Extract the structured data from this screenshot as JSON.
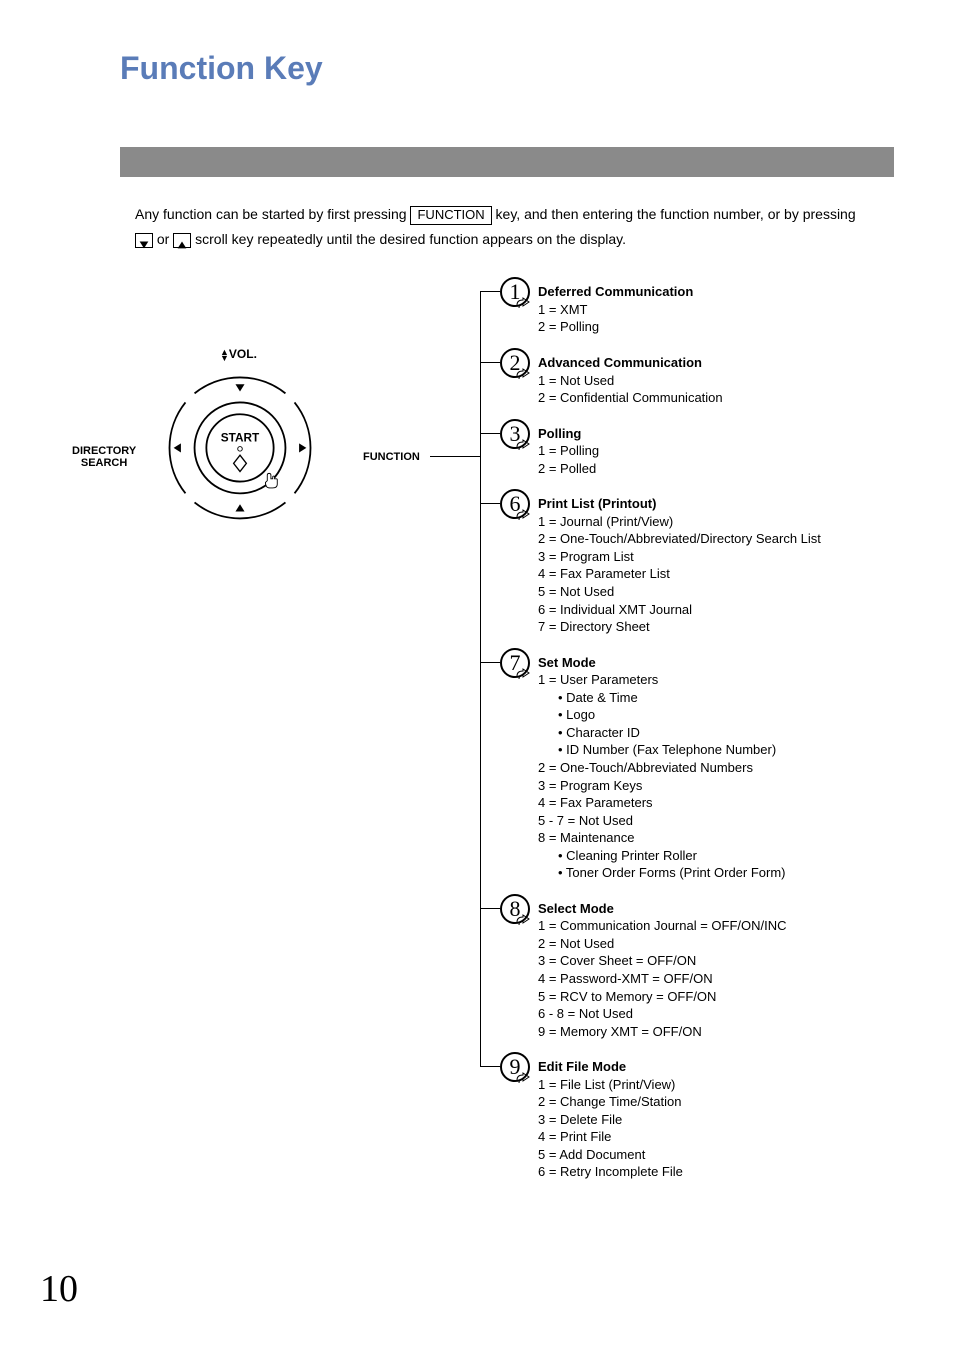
{
  "title": "Function Key",
  "introPre": "Any function can be started by first pressing ",
  "functionKeyLabel": "FUNCTION",
  "introMid": " key, and then entering the function number, or by pressing ",
  "introOr": " or ",
  "introEnd": " scroll key repeatedly until the desired function appears on the display.",
  "volLabel": "VOL.",
  "directoryLabel1": "DIRECTORY",
  "directoryLabel2": "SEARCH",
  "functionLabel": "FUNCTION",
  "startLabel": "START",
  "functions": [
    {
      "num": "1",
      "title": "Deferred Communication",
      "lines": [
        "1 = XMT",
        "2 = Polling"
      ]
    },
    {
      "num": "2",
      "title": "Advanced Communication",
      "lines": [
        "1 = Not Used",
        "2 = Confidential Communication"
      ]
    },
    {
      "num": "3",
      "title": "Polling",
      "lines": [
        "1 = Polling",
        "2 = Polled"
      ]
    },
    {
      "num": "6",
      "title": "Print List (Printout)",
      "lines": [
        "1 = Journal (Print/View)",
        "2 = One-Touch/Abbreviated/Directory Search List",
        "3 = Program List",
        "4 = Fax Parameter List",
        "5 = Not Used",
        "6 = Individual XMT Journal",
        "7 = Directory Sheet"
      ]
    },
    {
      "num": "7",
      "title": "Set Mode",
      "lines": [
        "1 = User Parameters",
        "• Date & Time|indent",
        "• Logo|indent",
        "• Character ID|indent",
        "• ID Number (Fax Telephone Number)|indent",
        "2 = One-Touch/Abbreviated Numbers",
        "3 = Program Keys",
        "4 = Fax Parameters",
        "5 - 7 = Not Used",
        "8 = Maintenance",
        "• Cleaning Printer Roller|indent",
        "• Toner Order Forms (Print Order Form)|indent"
      ]
    },
    {
      "num": "8",
      "title": "Select Mode",
      "lines": [
        "1 = Communication Journal = OFF/ON/INC",
        "2 = Not Used",
        "3 = Cover Sheet = OFF/ON",
        "4 = Password-XMT = OFF/ON",
        "5 = RCV to Memory = OFF/ON",
        "6 - 8 = Not Used",
        "9 = Memory XMT = OFF/ON"
      ]
    },
    {
      "num": "9",
      "title": "Edit File Mode",
      "lines": [
        "1 = File List (Print/View)",
        "2 = Change Time/Station",
        "3 = Delete File",
        "4 = Print File",
        "5 = Add Document",
        "6 = Retry Incomplete File"
      ]
    }
  ],
  "pageNumber": "10",
  "colors": {
    "titleColor": "#5a7cb8",
    "barColor": "#8a8a8a",
    "text": "#000000",
    "background": "#ffffff"
  }
}
